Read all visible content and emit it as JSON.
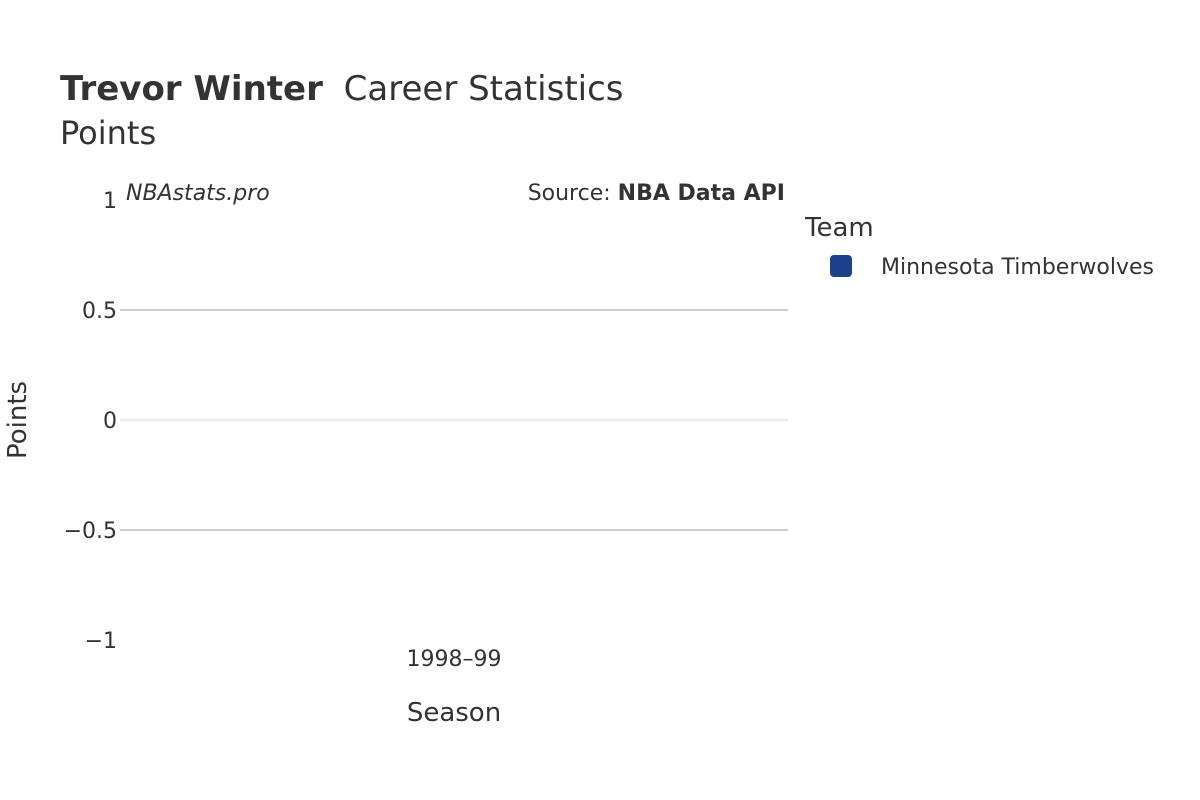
{
  "header": {
    "player_name": "Trevor Winter",
    "title_rest": "Career Statistics",
    "subtitle": "Points"
  },
  "watermark": {
    "site": "NBAstats.pro",
    "source_prefix": "Source: ",
    "source_name": "NBA Data API"
  },
  "legend": {
    "title": "Team",
    "items": [
      {
        "label": "Minnesota Timberwolves",
        "color": "#1d428a"
      }
    ]
  },
  "chart_data": {
    "type": "bar",
    "title": "Trevor Winter Career Statistics",
    "subtitle": "Points",
    "xlabel": "Season",
    "ylabel": "Points",
    "categories": [
      "1998–99"
    ],
    "series": [
      {
        "name": "Minnesota Timberwolves",
        "values": [
          0
        ],
        "color": "#1d428a"
      }
    ],
    "ylim": [
      -1,
      1
    ],
    "yticks": [
      {
        "value": 1,
        "label": "1"
      },
      {
        "value": 0.5,
        "label": "0.5"
      },
      {
        "value": 0,
        "label": "0"
      },
      {
        "value": -0.5,
        "label": "−0.5"
      },
      {
        "value": -1,
        "label": "−1"
      }
    ],
    "grid": true,
    "legend_position": "right"
  }
}
